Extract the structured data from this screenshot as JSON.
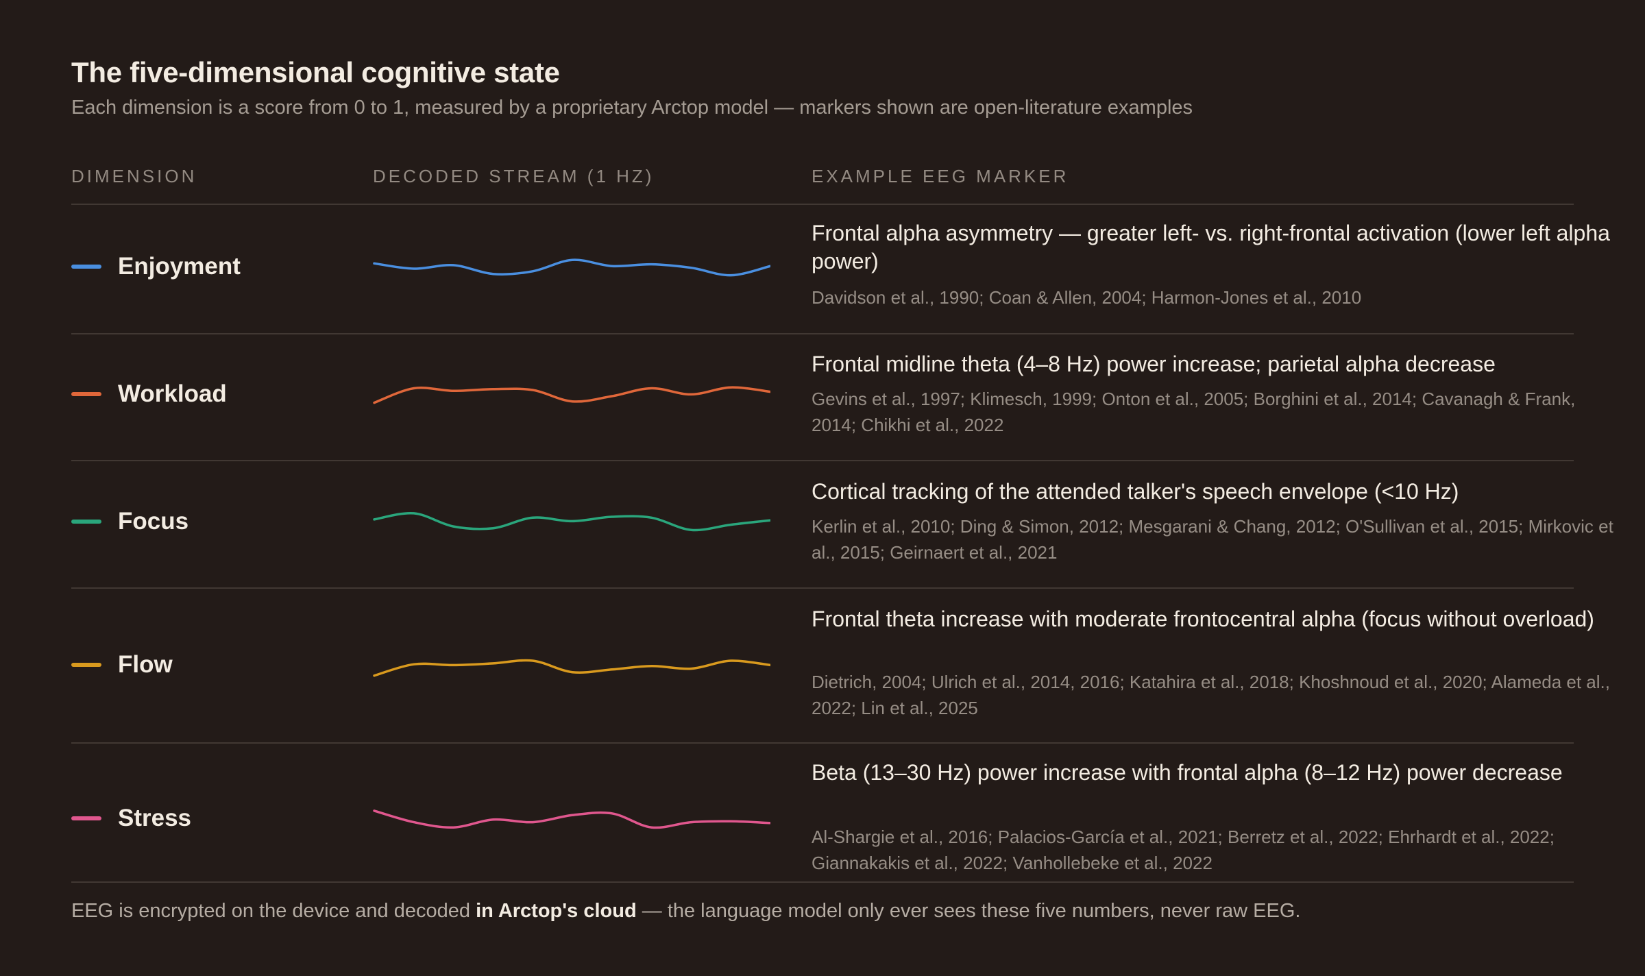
{
  "header": {
    "title": "The five-dimensional cognitive state",
    "subtitle": "Each dimension is a score from 0 to 1, measured by a proprietary Arctop model — markers shown are open-literature examples"
  },
  "columns": {
    "dimension": "DIMENSION",
    "stream": "DECODED STREAM (1 HZ)",
    "marker": "EXAMPLE EEG MARKER"
  },
  "rows": [
    {
      "name": "Enjoyment",
      "color": "#4a8fe0",
      "marker": "Frontal alpha asymmetry — greater left- vs. right-frontal activation (lower left alpha power)",
      "refs": "Davidson et al., 1990; Coan & Allen, 2004; Harmon-Jones et al., 2010",
      "stream": [
        0.62,
        0.5,
        0.58,
        0.38,
        0.44,
        0.7,
        0.56,
        0.6,
        0.52,
        0.35,
        0.56
      ]
    },
    {
      "name": "Workload",
      "color": "#e0673a",
      "marker": "Frontal midline theta (4–8 Hz) power increase; parietal alpha decrease",
      "refs": "Gevins et al., 1997; Klimesch, 1999; Onton et al., 2005; Borghini et al., 2014; Cavanagh & Frank, 2014; Chikhi et al., 2022",
      "stream": [
        0.35,
        0.68,
        0.62,
        0.66,
        0.64,
        0.38,
        0.5,
        0.68,
        0.54,
        0.7,
        0.6
      ]
    },
    {
      "name": "Focus",
      "color": "#2aa67c",
      "marker": "Cortical tracking of the attended talker's speech envelope (<10 Hz)",
      "refs": "Kerlin et al., 2010; Ding & Simon, 2012; Mesgarani & Chang, 2012; O'Sullivan et al., 2015; Mirkovic et al., 2015; Geirnaert et al., 2021",
      "stream": [
        0.58,
        0.72,
        0.42,
        0.38,
        0.62,
        0.54,
        0.64,
        0.62,
        0.34,
        0.46,
        0.56
      ]
    },
    {
      "name": "Flow",
      "color": "#d99a1e",
      "marker": "Frontal theta increase with moderate frontocentral alpha (focus without overload)",
      "refs": "Dietrich, 2004; Ulrich et al., 2014, 2016; Katahira et al., 2018; Khoshnoud et al., 2020; Alameda et al., 2022; Lin et al., 2025",
      "stream": [
        0.3,
        0.56,
        0.54,
        0.58,
        0.64,
        0.38,
        0.44,
        0.52,
        0.46,
        0.64,
        0.54
      ]
    },
    {
      "name": "Stress",
      "color": "#e0578e",
      "marker": "Beta (13–30 Hz) power increase with frontal alpha (8–12 Hz) power decrease",
      "refs": "Al-Shargie et al., 2016; Palacios-García et al., 2021; Berretz et al., 2022; Ehrhardt et al., 2022; Giannakakis et al., 2022; Vanhollebeke et al., 2022",
      "stream": [
        0.72,
        0.46,
        0.34,
        0.52,
        0.46,
        0.62,
        0.66,
        0.34,
        0.46,
        0.48,
        0.44
      ]
    }
  ],
  "footer": {
    "before": "EEG is encrypted on the device and decoded ",
    "bold": "in Arctop's cloud",
    "after": " — the language model only ever sees these five numbers, never raw EEG."
  }
}
